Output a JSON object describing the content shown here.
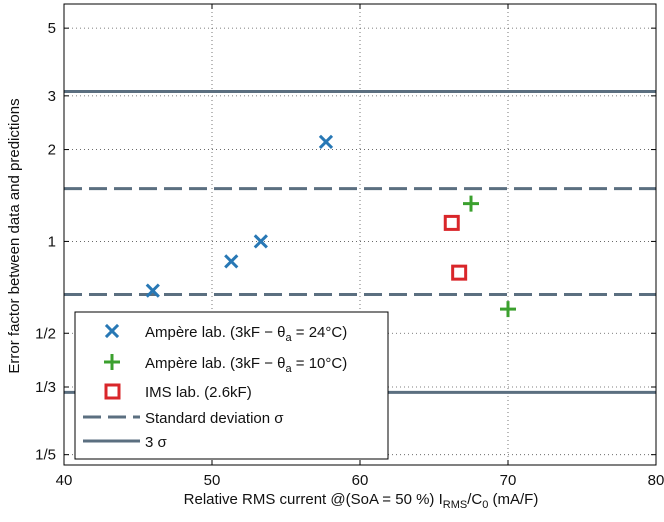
{
  "chart_data": {
    "type": "scatter",
    "xlabel": "Relative RMS current @(SoA = 50 %) I",
    "xlabel_sub1": "RMS",
    "xlabel_mid": "/C",
    "xlabel_sub2": "0",
    "xlabel_tail": " (mA/F)",
    "ylabel": "Error factor between data and predictions",
    "xlim": [
      40,
      80
    ],
    "ylim": [
      0.185,
      6.0
    ],
    "yscale": "log",
    "grid": true,
    "legend_position": "bottom-left",
    "x_ticks": [
      40,
      50,
      60,
      70,
      80
    ],
    "x_tick_labels": [
      "40",
      "50",
      "60",
      "70",
      "80"
    ],
    "y_ticks": [
      0.2,
      0.3333,
      0.5,
      1,
      2,
      3,
      5
    ],
    "y_tick_labels": [
      "1/5",
      "1/3",
      "1/2",
      "1",
      "2",
      "3",
      "5"
    ],
    "series": [
      {
        "name": "Ampère lab. (3kF − θ",
        "name_sub": "a",
        "name_tail": " = 24°C)",
        "marker": "x",
        "color": "#2878b5",
        "points": [
          [
            46.0,
            0.69
          ],
          [
            51.3,
            0.86
          ],
          [
            53.3,
            1.0
          ],
          [
            57.7,
            2.12
          ]
        ]
      },
      {
        "name": "Ampère lab. (3kF − θ",
        "name_sub": "a",
        "name_tail": " = 10°C)",
        "marker": "+",
        "color": "#3ba02e",
        "points": [
          [
            67.5,
            1.33
          ],
          [
            70.0,
            0.6
          ]
        ]
      },
      {
        "name": "IMS lab. (2.6kF)",
        "marker": "square",
        "color": "#d9262a",
        "points": [
          [
            66.2,
            1.15
          ],
          [
            66.7,
            0.79
          ]
        ]
      }
    ],
    "reference_lines": [
      {
        "name": "Standard deviation σ",
        "style": "dashed",
        "color": "#5b6f80",
        "values": [
          0.67,
          1.49
        ]
      },
      {
        "name": "3 σ",
        "style": "solid",
        "color": "#5b6f80",
        "values": [
          0.32,
          3.1
        ]
      }
    ]
  }
}
